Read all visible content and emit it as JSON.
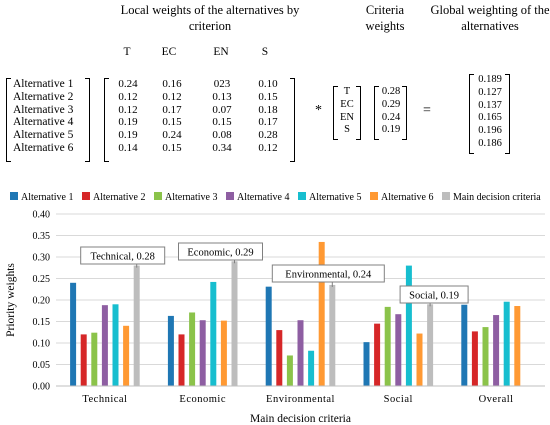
{
  "matrix": {
    "local_header": "Local weights of the alternatives by criterion",
    "criteria_header": "Criteria weights",
    "global_header": "Global weighting of the alternatives",
    "columns": [
      "T",
      "EC",
      "EN",
      "S"
    ],
    "rows": [
      {
        "label": "Alternative 1",
        "values": [
          "0.24",
          "0.16",
          "023",
          "0.10"
        ]
      },
      {
        "label": "Alternative 2",
        "values": [
          "0.12",
          "0.12",
          "0.13",
          "0.15"
        ]
      },
      {
        "label": "Alternative 3",
        "values": [
          "0.12",
          "0.17",
          "0.07",
          "0.18"
        ]
      },
      {
        "label": "Alternative 4",
        "values": [
          "0.19",
          "0.15",
          "0.15",
          "0.17"
        ]
      },
      {
        "label": "Alternative 5",
        "values": [
          "0.19",
          "0.24",
          "0.08",
          "0.28"
        ]
      },
      {
        "label": "Alternative 6",
        "values": [
          "0.14",
          "0.15",
          "0.34",
          "0.12"
        ]
      }
    ],
    "multiply_sign": "*",
    "criteria_labels": [
      "T",
      "EC",
      "EN",
      "S"
    ],
    "criteria_values": [
      "0.28",
      "0.29",
      "0.24",
      "0.19"
    ],
    "equals_sign": "=",
    "global_values": [
      "0.189",
      "0.127",
      "0.137",
      "0.165",
      "0.196",
      "0.186"
    ]
  },
  "chart_data": {
    "type": "bar",
    "title": "",
    "xlabel": "Main decision criteria",
    "ylabel": "Priority weights",
    "ylim": [
      0,
      0.4
    ],
    "yticks": [
      "0.00",
      "0.05",
      "0.10",
      "0.15",
      "0.20",
      "0.25",
      "0.30",
      "0.35",
      "0.40"
    ],
    "legend_position": "top",
    "categories": [
      "Technical",
      "Economic",
      "Environmental",
      "Social",
      "Overall"
    ],
    "series": [
      {
        "name": "Alternative 1",
        "color": "#1f77b4",
        "values": [
          0.24,
          0.163,
          0.231,
          0.102,
          0.189
        ]
      },
      {
        "name": "Alternative 2",
        "color": "#d62728",
        "values": [
          0.12,
          0.12,
          0.13,
          0.145,
          0.127
        ]
      },
      {
        "name": "Alternative 3",
        "color": "#8bc34a",
        "values": [
          0.124,
          0.171,
          0.071,
          0.184,
          0.137
        ]
      },
      {
        "name": "Alternative 4",
        "color": "#8e5ea2",
        "values": [
          0.188,
          0.153,
          0.153,
          0.167,
          0.165
        ]
      },
      {
        "name": "Alternative 5",
        "color": "#17becf",
        "values": [
          0.19,
          0.242,
          0.082,
          0.28,
          0.196
        ]
      },
      {
        "name": "Alternative 6",
        "color": "#ff9933",
        "values": [
          0.14,
          0.152,
          0.335,
          0.122,
          0.186
        ]
      },
      {
        "name": "Main decision criteria",
        "color": "#bdbdbd",
        "values": [
          0.28,
          0.29,
          0.235,
          0.19,
          null
        ]
      }
    ],
    "callouts": [
      {
        "label": "Technical, 0.28",
        "category": 0
      },
      {
        "label": "Economic, 0.29",
        "category": 1
      },
      {
        "label": "Environmental, 0.24",
        "category": 2
      },
      {
        "label": "Social, 0.19",
        "category": 3
      }
    ]
  }
}
